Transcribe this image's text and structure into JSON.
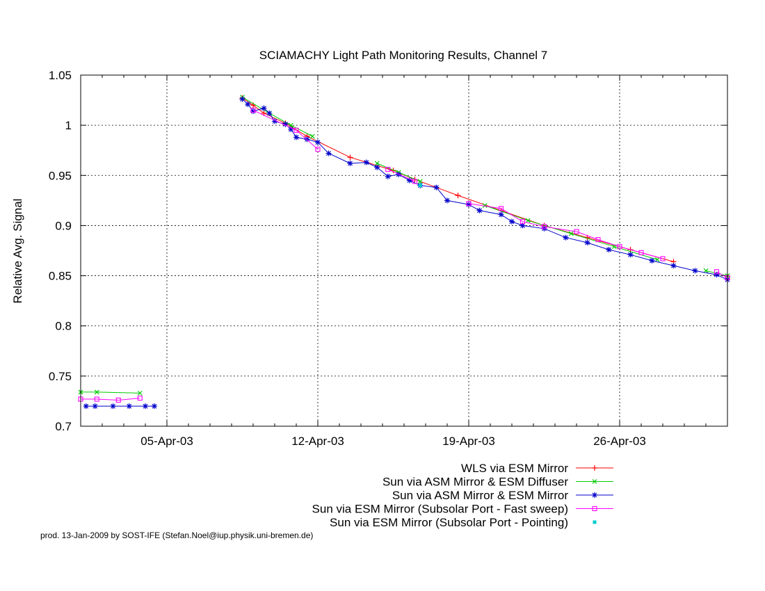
{
  "chart_data": {
    "type": "line",
    "title": "SCIAMACHY Light Path Monitoring Results, Channel 7",
    "xlabel": "",
    "ylabel": "Relative Avg. Signal",
    "xlim": [
      "2003-04-01",
      "2003-05-01"
    ],
    "ylim": [
      0.7,
      1.05
    ],
    "x_ticks": [
      {
        "date": "2003-04-05",
        "label": "05-Apr-03"
      },
      {
        "date": "2003-04-12",
        "label": "12-Apr-03"
      },
      {
        "date": "2003-04-19",
        "label": "19-Apr-03"
      },
      {
        "date": "2003-04-26",
        "label": "26-Apr-03"
      }
    ],
    "y_ticks": [
      {
        "value": 0.7,
        "label": "0.7"
      },
      {
        "value": 0.75,
        "label": "0.75"
      },
      {
        "value": 0.8,
        "label": "0.8"
      },
      {
        "value": 0.85,
        "label": "0.85"
      },
      {
        "value": 0.9,
        "label": "0.9"
      },
      {
        "value": 0.95,
        "label": "0.95"
      },
      {
        "value": 1.0,
        "label": "1"
      },
      {
        "value": 1.05,
        "label": "1.05"
      }
    ],
    "grid": true,
    "legend_position": "bottom-right",
    "series": [
      {
        "name": "WLS via ESM Mirror",
        "color": "#ff0000",
        "marker": "plus",
        "points": [
          [
            "2003-04-08T12:00",
            1.027
          ],
          [
            "2003-04-09T00:00",
            1.02
          ],
          [
            "2003-04-09T12:00",
            1.012
          ],
          [
            "2003-04-10T12:00",
            1.002
          ],
          [
            "2003-04-11T12:00",
            0.989
          ],
          [
            "2003-04-13T12:00",
            0.968
          ],
          [
            "2003-04-15T12:00",
            0.955
          ],
          [
            "2003-04-16T12:00",
            0.946
          ],
          [
            "2003-04-18T12:00",
            0.93
          ],
          [
            "2003-04-20T12:00",
            0.915
          ],
          [
            "2003-04-22T12:00",
            0.9
          ],
          [
            "2003-04-24T12:00",
            0.888
          ],
          [
            "2003-04-26T12:00",
            0.876
          ],
          [
            "2003-04-28T12:00",
            0.864
          ],
          [
            "2003-05-01T00:00",
            0.849
          ]
        ]
      },
      {
        "name": "Sun via ASM Mirror & ESM Diffuser",
        "color": "#00cc00",
        "marker": "cross",
        "points": [
          [
            "2003-04-01T00:00",
            0.734
          ],
          [
            "2003-04-01T18:00",
            0.734
          ],
          [
            "2003-04-03T18:00",
            0.733
          ],
          [
            "2003-04-08T12:00",
            1.028
          ],
          [
            "2003-04-09T18:00",
            1.012
          ],
          [
            "2003-04-10T18:00",
            1.0
          ],
          [
            "2003-04-11T18:00",
            0.989
          ],
          [
            "2003-04-14T18:00",
            0.962
          ],
          [
            "2003-04-15T18:00",
            0.953
          ],
          [
            "2003-04-16T18:00",
            0.944
          ],
          [
            "2003-04-19T18:00",
            0.92
          ],
          [
            "2003-04-21T18:00",
            0.905
          ],
          [
            "2003-04-23T18:00",
            0.892
          ],
          [
            "2003-04-25T18:00",
            0.879
          ],
          [
            "2003-04-27T18:00",
            0.866
          ],
          [
            "2003-04-30T00:00",
            0.855
          ],
          [
            "2003-05-01T00:00",
            0.85
          ]
        ]
      },
      {
        "name": "Sun via ASM Mirror & ESM Mirror",
        "color": "#0000cc",
        "marker": "star",
        "points": [
          [
            "2003-04-01T06:00",
            0.72
          ],
          [
            "2003-04-01T16:00",
            0.72
          ],
          [
            "2003-04-02T12:00",
            0.72
          ],
          [
            "2003-04-03T06:00",
            0.72
          ],
          [
            "2003-04-04T00:00",
            0.72
          ],
          [
            "2003-04-04T10:00",
            0.72
          ],
          [
            "2003-04-08T12:00",
            1.026
          ],
          [
            "2003-04-08T18:00",
            1.021
          ],
          [
            "2003-04-09T00:00",
            1.014
          ],
          [
            "2003-04-09T12:00",
            1.017
          ],
          [
            "2003-04-09T18:00",
            1.012
          ],
          [
            "2003-04-10T00:00",
            1.004
          ],
          [
            "2003-04-10T12:00",
            1.001
          ],
          [
            "2003-04-10T18:00",
            0.996
          ],
          [
            "2003-04-11T00:00",
            0.988
          ],
          [
            "2003-04-11T12:00",
            0.986
          ],
          [
            "2003-04-12T00:00",
            0.983
          ],
          [
            "2003-04-12T12:00",
            0.972
          ],
          [
            "2003-04-13T12:00",
            0.962
          ],
          [
            "2003-04-14T06:00",
            0.963
          ],
          [
            "2003-04-14T18:00",
            0.958
          ],
          [
            "2003-04-15T06:00",
            0.949
          ],
          [
            "2003-04-15T18:00",
            0.951
          ],
          [
            "2003-04-16T06:00",
            0.945
          ],
          [
            "2003-04-16T18:00",
            0.94
          ],
          [
            "2003-04-17T12:00",
            0.938
          ],
          [
            "2003-04-18T00:00",
            0.925
          ],
          [
            "2003-04-19T00:00",
            0.921
          ],
          [
            "2003-04-19T12:00",
            0.915
          ],
          [
            "2003-04-20T12:00",
            0.911
          ],
          [
            "2003-04-21T00:00",
            0.904
          ],
          [
            "2003-04-21T12:00",
            0.9
          ],
          [
            "2003-04-22T12:00",
            0.897
          ],
          [
            "2003-04-23T12:00",
            0.888
          ],
          [
            "2003-04-24T12:00",
            0.883
          ],
          [
            "2003-04-25T12:00",
            0.876
          ],
          [
            "2003-04-26T12:00",
            0.871
          ],
          [
            "2003-04-27T12:00",
            0.865
          ],
          [
            "2003-04-28T12:00",
            0.86
          ],
          [
            "2003-04-29T12:00",
            0.855
          ],
          [
            "2003-04-30T12:00",
            0.851
          ],
          [
            "2003-05-01T00:00",
            0.846
          ]
        ]
      },
      {
        "name": "Sun via ESM Mirror (Subsolar Port - Fast sweep)",
        "color": "#ff00ff",
        "marker": "square",
        "points": [
          [
            "2003-04-01T00:00",
            0.727
          ],
          [
            "2003-04-01T18:00",
            0.727
          ],
          [
            "2003-04-02T18:00",
            0.726
          ],
          [
            "2003-04-03T18:00",
            0.728
          ],
          [
            "2003-04-09T00:00",
            1.015
          ],
          [
            "2003-04-11T00:00",
            0.995
          ],
          [
            "2003-04-12T00:00",
            0.976
          ],
          [
            "2003-04-15T06:00",
            0.956
          ],
          [
            "2003-04-16T12:00",
            0.944
          ],
          [
            "2003-04-19T00:00",
            0.922
          ],
          [
            "2003-04-20T12:00",
            0.917
          ],
          [
            "2003-04-21T12:00",
            0.904
          ],
          [
            "2003-04-22T12:00",
            0.899
          ],
          [
            "2003-04-24T00:00",
            0.894
          ],
          [
            "2003-04-25T00:00",
            0.886
          ],
          [
            "2003-04-26T00:00",
            0.879
          ],
          [
            "2003-04-27T00:00",
            0.873
          ],
          [
            "2003-04-28T00:00",
            0.867
          ],
          [
            "2003-04-30T12:00",
            0.854
          ],
          [
            "2003-05-01T00:00",
            0.848
          ]
        ]
      },
      {
        "name": "Sun via ESM Mirror (Subsolar Port - Pointing)",
        "color": "#00cccc",
        "marker": "dot",
        "points": [
          [
            "2003-04-16T18:00",
            0.94
          ]
        ]
      }
    ]
  },
  "footer": "prod. 13-Jan-2009 by SOST-IFE (Stefan.Noel@iup.physik.uni-bremen.de)"
}
